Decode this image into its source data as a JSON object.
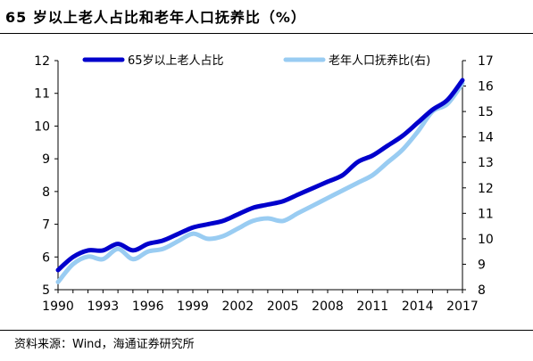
{
  "page": {
    "title": "65 岁以上老人占比和老年人口抚养比（%）",
    "source": "资料来源：Wind，海通证券研究所"
  },
  "chart_data": {
    "type": "line",
    "title": "65 岁以上老人占比和老年人口抚养比（%）",
    "xlabel": "",
    "ylabel": "",
    "xlim": [
      1990,
      2017
    ],
    "xticks": [
      1990,
      1993,
      1996,
      1999,
      2002,
      2005,
      2008,
      2011,
      2014,
      2017
    ],
    "ylim": [
      5,
      12
    ],
    "yticks": [
      5,
      6,
      7,
      8,
      9,
      10,
      11,
      12
    ],
    "y2lim": [
      8,
      17
    ],
    "y2ticks": [
      8,
      9,
      10,
      11,
      12,
      13,
      14,
      15,
      16,
      17
    ],
    "grid": false,
    "legend": "top",
    "series": [
      {
        "name": "65岁以上老人占比",
        "axis": "left",
        "color": "#0000cc",
        "x": [
          1990,
          1991,
          1992,
          1993,
          1994,
          1995,
          1996,
          1997,
          1998,
          1999,
          2000,
          2001,
          2002,
          2003,
          2004,
          2005,
          2006,
          2007,
          2008,
          2009,
          2010,
          2011,
          2012,
          2013,
          2014,
          2015,
          2016,
          2017
        ],
        "values": [
          5.6,
          6.0,
          6.2,
          6.2,
          6.4,
          6.2,
          6.4,
          6.5,
          6.7,
          6.9,
          7.0,
          7.1,
          7.3,
          7.5,
          7.6,
          7.7,
          7.9,
          8.1,
          8.3,
          8.5,
          8.9,
          9.1,
          9.4,
          9.7,
          10.1,
          10.5,
          10.8,
          11.4
        ]
      },
      {
        "name": "老年人口抚养比(右)",
        "axis": "right",
        "color": "#99ccf2",
        "x": [
          1990,
          1991,
          1992,
          1993,
          1994,
          1995,
          1996,
          1997,
          1998,
          1999,
          2000,
          2001,
          2002,
          2003,
          2004,
          2005,
          2006,
          2007,
          2008,
          2009,
          2010,
          2011,
          2012,
          2013,
          2014,
          2015,
          2016,
          2017
        ],
        "values": [
          8.3,
          9.0,
          9.3,
          9.2,
          9.6,
          9.2,
          9.5,
          9.6,
          9.9,
          10.2,
          10.0,
          10.1,
          10.4,
          10.7,
          10.8,
          10.7,
          11.0,
          11.3,
          11.6,
          11.9,
          12.2,
          12.5,
          13.0,
          13.5,
          14.2,
          15.0,
          15.3,
          16.1
        ]
      }
    ]
  }
}
